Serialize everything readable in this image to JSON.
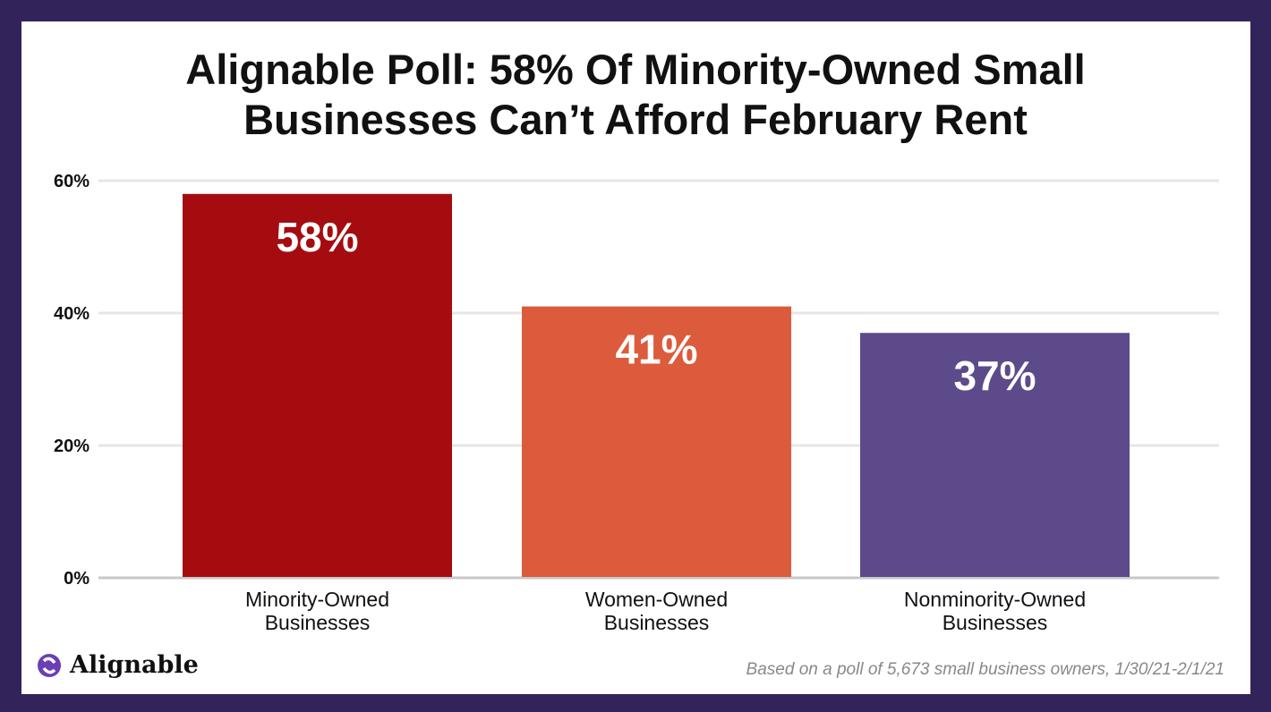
{
  "chart_data": {
    "type": "bar",
    "title": "Alignable Poll: 58% Of Minority-Owned Small Businesses Can’t Afford February Rent",
    "categories": [
      "Minority-Owned Businesses",
      "Women-Owned Businesses",
      "Nonminority-Owned Businesses"
    ],
    "category_lines": [
      [
        "Minority-Owned",
        "Businesses"
      ],
      [
        "Women-Owned",
        "Businesses"
      ],
      [
        "Nonminority-Owned",
        "Businesses"
      ]
    ],
    "values": [
      58,
      41,
      37
    ],
    "data_labels": [
      "58%",
      "41%",
      "37%"
    ],
    "colors": [
      "#a50c10",
      "#dc5b3c",
      "#5d4a8a"
    ],
    "yticks": [
      0,
      20,
      40,
      60
    ],
    "ytick_labels": [
      "0%",
      "20%",
      "40%",
      "60%"
    ],
    "ylim": [
      0,
      60
    ],
    "grid": true,
    "xlabel": "",
    "ylabel": ""
  },
  "title_lines": [
    "Alignable Poll: 58% Of Minority-Owned Small",
    "Businesses Can’t Afford February Rent"
  ],
  "brand": {
    "name": "Alignable",
    "color": "#6a3fb5"
  },
  "footnote": "Based on a poll of 5,673 small business owners, 1/30/21-2/1/21",
  "frame_color": "#33235b"
}
